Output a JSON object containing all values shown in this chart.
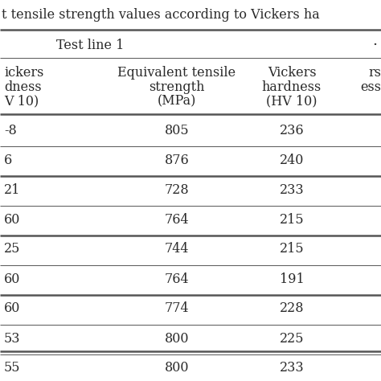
{
  "title": "t tensile strength values according to Vickers ha",
  "section_header": "Test line 1",
  "right_header_partial": "•",
  "col0_header": [
    "ickers",
    "dness",
    "V 10)"
  ],
  "col1_header": [
    "Equivalent tensile",
    "strength",
    "(MPa)"
  ],
  "col2_header": [
    "Vickers",
    "hardness",
    "(HV 10)"
  ],
  "col2_right_partial": [
    "rs",
    "ess"
  ],
  "col0_data": [
    "-8",
    "6",
    "21",
    "60",
    "25",
    "60",
    "60",
    "53",
    "55"
  ],
  "col1_data": [
    "805",
    "876",
    "728",
    "764",
    "744",
    "764",
    "774",
    "800",
    "800"
  ],
  "col2_data": [
    "236",
    "240",
    "233",
    "215",
    "215",
    "191",
    "228",
    "225",
    "233"
  ],
  "thick_after_rows": [
    1,
    3,
    5
  ],
  "bg_color": "#ffffff",
  "text_color": "#2a2a2a",
  "line_color": "#555555",
  "thick_lw": 1.8,
  "thin_lw": 0.7
}
